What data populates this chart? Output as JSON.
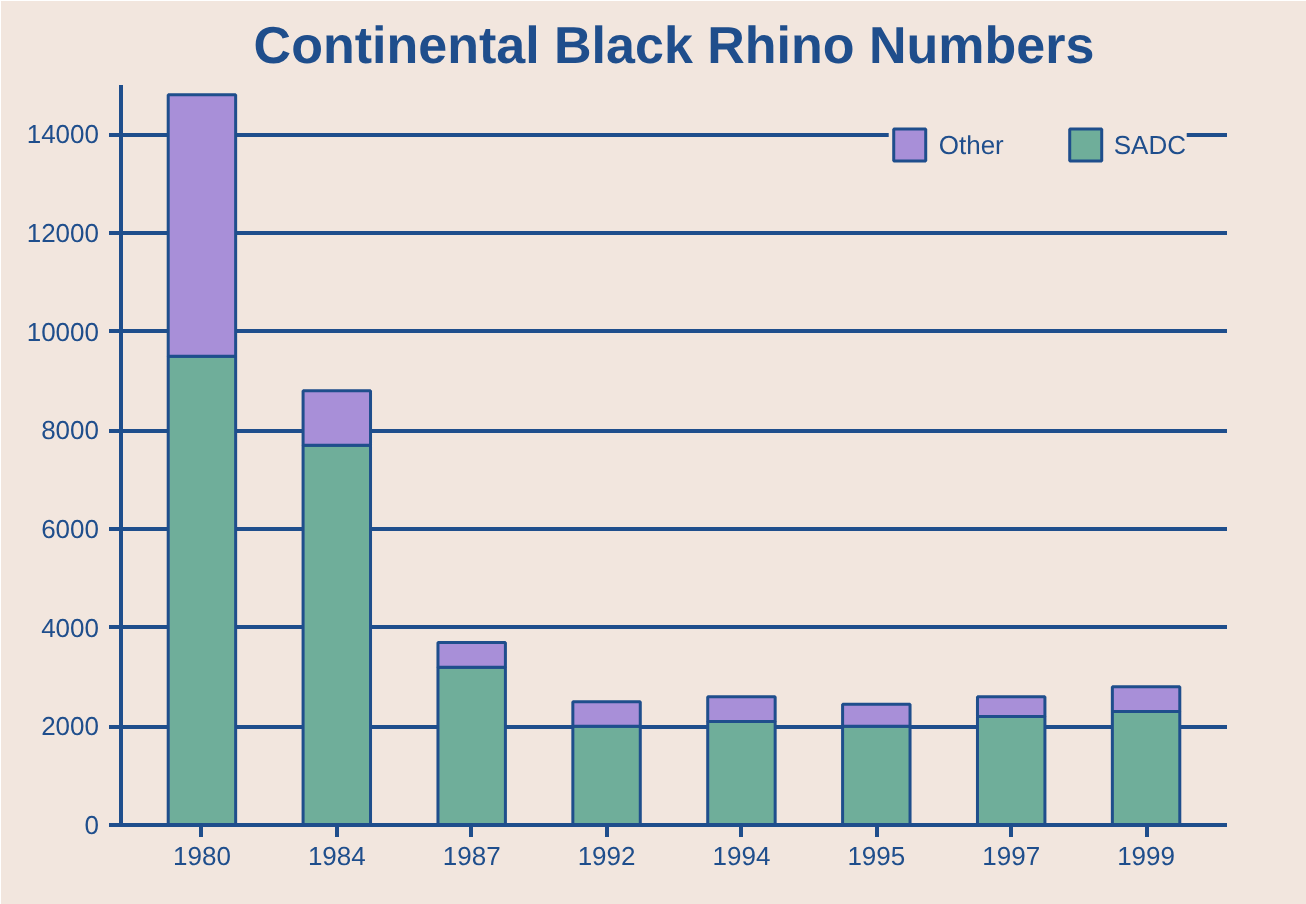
{
  "chart_data": {
    "type": "bar",
    "title": "Continental Black Rhino Numbers",
    "stacked": true,
    "categories": [
      "1980",
      "1984",
      "1987",
      "1992",
      "1994",
      "1995",
      "1997",
      "1999"
    ],
    "series": [
      {
        "name": "SADC",
        "color": "#6fae9a",
        "values": [
          9500,
          7700,
          3200,
          2000,
          2100,
          2000,
          2200,
          2300
        ]
      },
      {
        "name": "Other",
        "color": "#a88fd8",
        "values": [
          5300,
          1100,
          500,
          500,
          500,
          450,
          400,
          500
        ]
      }
    ],
    "ylim": [
      0,
      15000
    ],
    "yticks": [
      0,
      2000,
      4000,
      6000,
      8000,
      10000,
      12000,
      14000
    ],
    "grid": "y",
    "legend": "top right"
  }
}
